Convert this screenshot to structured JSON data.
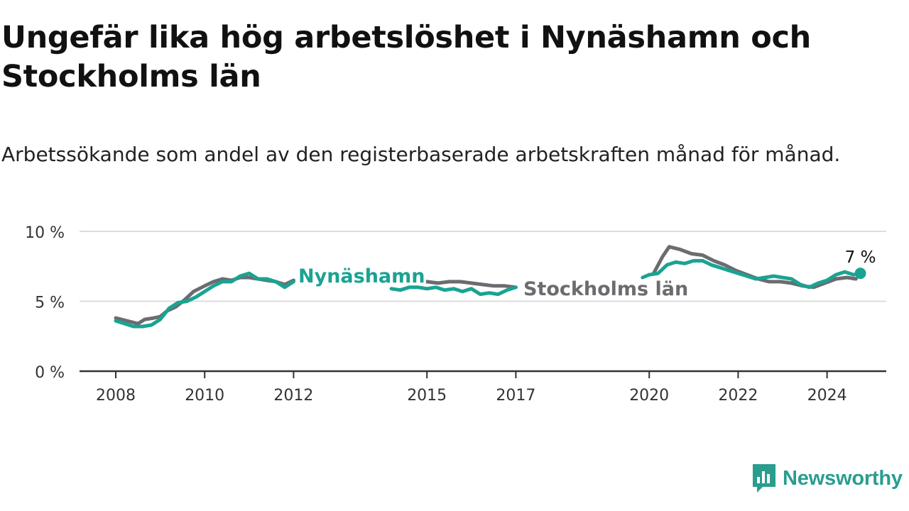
{
  "title": "Ungefär lika hög arbetslöshet i Nynäshamn och Stockholms län",
  "subtitle": "Arbetssökande som andel av den registerbaserade arbetskraften månad för månad.",
  "brand": {
    "name": "Newsworthy",
    "color": "#2a9d8f"
  },
  "colors": {
    "nynashamn": "#1aa392",
    "stockholm": "#6b6b70",
    "grid": "#dddddd",
    "axis": "#333333"
  },
  "chart_data": {
    "type": "line",
    "title": "Ungefär lika hög arbetslöshet i Nynäshamn och Stockholms län",
    "xlabel": "",
    "ylabel": "",
    "xlim": [
      2008,
      2025.4
    ],
    "ylim": [
      0,
      10
    ],
    "y_ticks": [
      {
        "value": 0,
        "label": "0 %"
      },
      {
        "value": 5,
        "label": "5 %"
      },
      {
        "value": 10,
        "label": "10 %"
      }
    ],
    "x_ticks": [
      {
        "value": 2008,
        "label": "2008"
      },
      {
        "value": 2010,
        "label": "2010"
      },
      {
        "value": 2012,
        "label": "2012"
      },
      {
        "value": 2015,
        "label": "2015"
      },
      {
        "value": 2017,
        "label": "2017"
      },
      {
        "value": 2020,
        "label": "2020"
      },
      {
        "value": 2022,
        "label": "2022"
      },
      {
        "value": 2024,
        "label": "2024"
      }
    ],
    "end_label": "7 %",
    "series": [
      {
        "name": "Stockholms län",
        "label": "Stockholms län",
        "segments": [
          [
            [
              2008.0,
              3.8
            ],
            [
              2008.25,
              3.6
            ],
            [
              2008.5,
              3.4
            ],
            [
              2008.65,
              3.7
            ],
            [
              2008.85,
              3.8
            ],
            [
              2009.0,
              3.9
            ],
            [
              2009.15,
              4.3
            ],
            [
              2009.35,
              4.6
            ],
            [
              2009.55,
              5.1
            ],
            [
              2009.75,
              5.7
            ],
            [
              2010.0,
              6.1
            ],
            [
              2010.2,
              6.4
            ],
            [
              2010.4,
              6.6
            ],
            [
              2010.6,
              6.5
            ],
            [
              2010.8,
              6.7
            ],
            [
              2011.0,
              6.7
            ],
            [
              2011.2,
              6.6
            ],
            [
              2011.4,
              6.5
            ],
            [
              2011.6,
              6.4
            ],
            [
              2011.8,
              6.2
            ],
            [
              2012.0,
              6.5
            ]
          ],
          [
            [
              2014.1,
              6.5
            ],
            [
              2014.35,
              6.4
            ],
            [
              2014.55,
              6.3
            ],
            [
              2014.75,
              6.4
            ],
            [
              2015.0,
              6.4
            ],
            [
              2015.25,
              6.3
            ],
            [
              2015.5,
              6.4
            ],
            [
              2015.75,
              6.4
            ],
            [
              2016.0,
              6.3
            ],
            [
              2016.25,
              6.2
            ],
            [
              2016.5,
              6.1
            ],
            [
              2016.75,
              6.1
            ],
            [
              2017.0,
              6.0
            ]
          ],
          [
            [
              2020.1,
              7.0
            ],
            [
              2020.3,
              8.2
            ],
            [
              2020.45,
              8.9
            ],
            [
              2020.7,
              8.7
            ],
            [
              2020.95,
              8.4
            ],
            [
              2021.2,
              8.3
            ],
            [
              2021.45,
              7.9
            ],
            [
              2021.7,
              7.6
            ],
            [
              2021.95,
              7.2
            ],
            [
              2022.2,
              6.9
            ],
            [
              2022.45,
              6.6
            ],
            [
              2022.7,
              6.4
            ],
            [
              2022.95,
              6.4
            ],
            [
              2023.2,
              6.3
            ],
            [
              2023.45,
              6.1
            ],
            [
              2023.7,
              6.0
            ],
            [
              2023.95,
              6.3
            ],
            [
              2024.2,
              6.6
            ],
            [
              2024.45,
              6.7
            ],
            [
              2024.65,
              6.6
            ]
          ]
        ]
      },
      {
        "name": "Nynäshamn",
        "label": "Nynäshamn",
        "segments": [
          [
            [
              2008.0,
              3.6
            ],
            [
              2008.2,
              3.4
            ],
            [
              2008.4,
              3.2
            ],
            [
              2008.6,
              3.2
            ],
            [
              2008.8,
              3.3
            ],
            [
              2009.0,
              3.7
            ],
            [
              2009.2,
              4.5
            ],
            [
              2009.4,
              4.9
            ],
            [
              2009.6,
              5.0
            ],
            [
              2009.8,
              5.3
            ],
            [
              2010.0,
              5.7
            ],
            [
              2010.2,
              6.1
            ],
            [
              2010.4,
              6.4
            ],
            [
              2010.6,
              6.4
            ],
            [
              2010.8,
              6.8
            ],
            [
              2011.0,
              7.0
            ],
            [
              2011.2,
              6.6
            ],
            [
              2011.4,
              6.6
            ],
            [
              2011.6,
              6.4
            ],
            [
              2011.8,
              6.0
            ],
            [
              2012.0,
              6.4
            ]
          ],
          [
            [
              2014.2,
              5.9
            ],
            [
              2014.4,
              5.8
            ],
            [
              2014.6,
              6.0
            ],
            [
              2014.8,
              6.0
            ],
            [
              2015.0,
              5.9
            ],
            [
              2015.2,
              6.0
            ],
            [
              2015.4,
              5.8
            ],
            [
              2015.6,
              5.9
            ],
            [
              2015.8,
              5.7
            ],
            [
              2016.0,
              5.9
            ],
            [
              2016.2,
              5.5
            ],
            [
              2016.4,
              5.6
            ],
            [
              2016.6,
              5.5
            ],
            [
              2016.8,
              5.8
            ],
            [
              2017.0,
              6.0
            ]
          ],
          [
            [
              2019.85,
              6.7
            ],
            [
              2020.0,
              6.9
            ],
            [
              2020.2,
              7.0
            ],
            [
              2020.4,
              7.6
            ],
            [
              2020.6,
              7.8
            ],
            [
              2020.8,
              7.7
            ],
            [
              2021.0,
              7.9
            ],
            [
              2021.2,
              7.9
            ],
            [
              2021.4,
              7.6
            ],
            [
              2021.6,
              7.4
            ],
            [
              2021.8,
              7.2
            ],
            [
              2022.0,
              7.0
            ],
            [
              2022.2,
              6.8
            ],
            [
              2022.4,
              6.6
            ],
            [
              2022.6,
              6.7
            ],
            [
              2022.8,
              6.8
            ],
            [
              2023.0,
              6.7
            ],
            [
              2023.2,
              6.6
            ],
            [
              2023.4,
              6.2
            ],
            [
              2023.6,
              6.0
            ],
            [
              2023.8,
              6.3
            ],
            [
              2024.0,
              6.5
            ],
            [
              2024.2,
              6.9
            ],
            [
              2024.4,
              7.1
            ],
            [
              2024.6,
              6.9
            ],
            [
              2024.75,
              7.0
            ]
          ]
        ]
      }
    ]
  }
}
